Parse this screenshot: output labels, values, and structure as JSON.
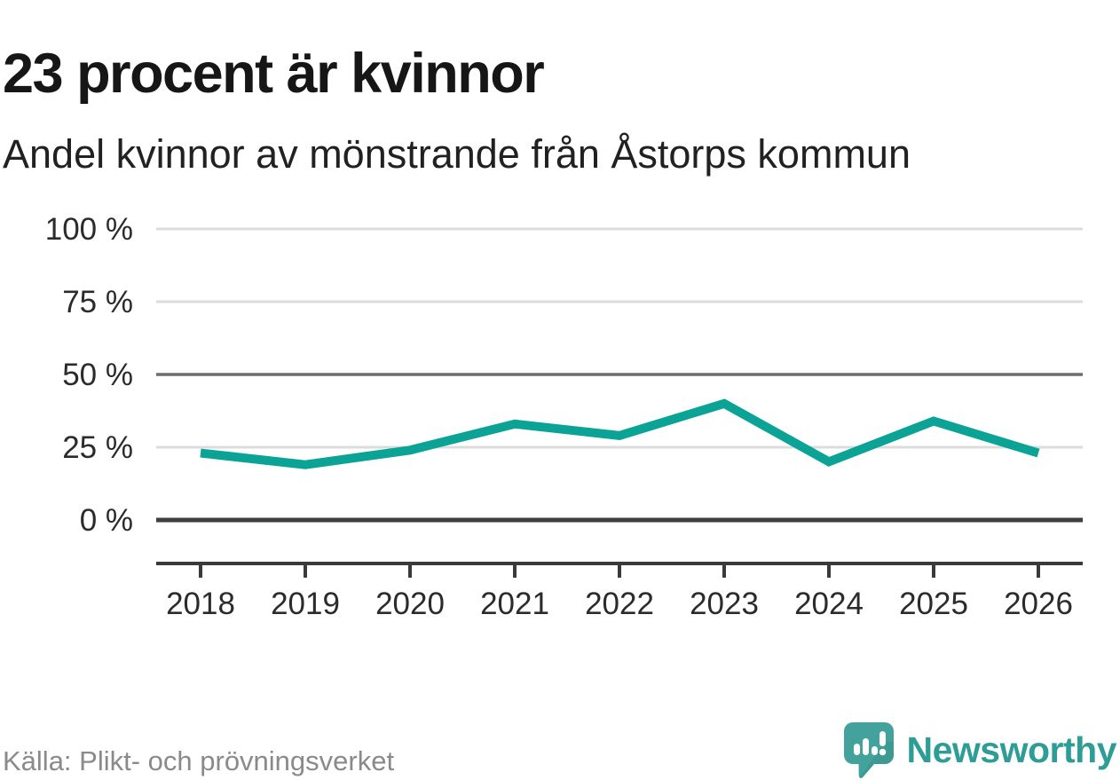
{
  "header": {
    "title": "23 procent är kvinnor",
    "subtitle": "Andel kvinnor av mönstrande från Åstorps kommun"
  },
  "chart_data": {
    "type": "line",
    "title": "23 procent är kvinnor",
    "subtitle": "Andel kvinnor av mönstrande från Åstorps kommun",
    "x": [
      "2018",
      "2019",
      "2020",
      "2021",
      "2022",
      "2023",
      "2024",
      "2025",
      "2026"
    ],
    "series": [
      {
        "name": "Andel kvinnor av mönstrande",
        "values": [
          23,
          19,
          24,
          33,
          29,
          40,
          20,
          34,
          23
        ]
      }
    ],
    "unit": "%",
    "ylim": [
      0,
      100
    ],
    "yticks": [
      0,
      25,
      50,
      75,
      100
    ],
    "ytick_suffix": " %",
    "grid": "horizontal",
    "emphasized_gridlines": [
      0,
      50
    ],
    "legend_position": "none",
    "line_color": "#0aa396"
  },
  "footer": {
    "source": "Källa: Plikt- och prövningsverket",
    "brand": "Newsworthy"
  },
  "icons": {
    "brand_logo": "newsworthy-bar-chart-speech-bubble-icon"
  },
  "colors": {
    "accent_line": "#0aa396",
    "brand_teal": "#2d9d96",
    "logo_bubble": "#43a39c",
    "logo_bubble_dark": "#37948d",
    "grid_light": "#dcdcdc",
    "grid_mid": "#6d6d72",
    "grid_zero": "#3f3f3f",
    "axis_dark": "#3a3a3a",
    "tick_label": "#2b2b2b",
    "title_text": "#161616",
    "source_gray": "#8a8a8a"
  }
}
